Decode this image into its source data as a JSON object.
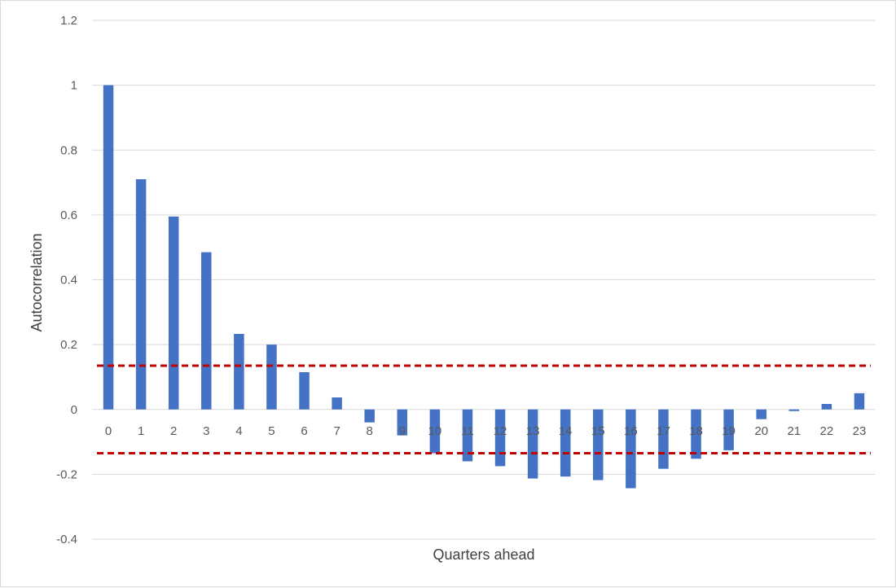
{
  "chart_data": {
    "type": "bar",
    "title": "",
    "xlabel": "Quarters ahead",
    "ylabel": "Autocorrelation",
    "categories": [
      "0",
      "1",
      "2",
      "3",
      "4",
      "5",
      "6",
      "7",
      "8",
      "9",
      "10",
      "11",
      "12",
      "13",
      "14",
      "15",
      "16",
      "17",
      "18",
      "19",
      "20",
      "21",
      "22",
      "23"
    ],
    "series": [
      {
        "values": [
          1.0,
          0.71,
          0.595,
          0.485,
          0.233,
          0.2,
          0.115,
          0.037,
          -0.04,
          -0.08,
          -0.135,
          -0.16,
          -0.175,
          -0.213,
          -0.207,
          -0.218,
          -0.243,
          -0.183,
          -0.152,
          -0.126,
          -0.03,
          -0.005,
          0.017,
          0.05
        ],
        "color": "#4472c4"
      }
    ],
    "confidence_bounds": {
      "upper": 0.135,
      "lower": -0.135,
      "color": "#c00000",
      "style": "dashed"
    },
    "ylim": [
      -0.4,
      1.2
    ],
    "yticks": [
      "-0.4",
      "-0.2",
      "0",
      "0.2",
      "0.4",
      "0.6",
      "0.8",
      "1",
      "1.2"
    ],
    "grid": true,
    "legend": "none"
  }
}
